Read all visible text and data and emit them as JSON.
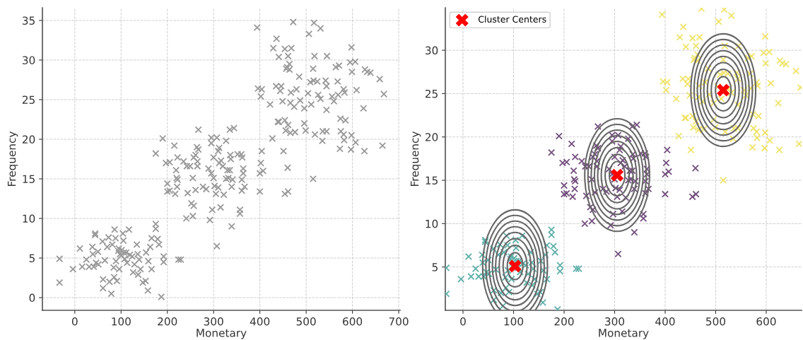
{
  "chart_data": [
    {
      "type": "scatter",
      "xlabel": "Monetary",
      "ylabel": "Frequency",
      "xlim": [
        -70,
        703
      ],
      "ylim": [
        -1.6,
        36.6
      ],
      "xticks": [
        0,
        100,
        200,
        300,
        400,
        500,
        600,
        700
      ],
      "yticks": [
        0,
        5,
        10,
        15,
        20,
        25,
        30,
        35
      ],
      "grid": true,
      "marker": "cross",
      "legend": false,
      "series": [
        {
          "color": "#999999",
          "x": [
            -33,
            -33,
            -4,
            11,
            16,
            25,
            31,
            38,
            39,
            41,
            44,
            44,
            46,
            50,
            51,
            60,
            61,
            61,
            65,
            70,
            73,
            75,
            79,
            81,
            84,
            85,
            86,
            88,
            89,
            91,
            94,
            96,
            98,
            101,
            104,
            105,
            106,
            111,
            117,
            119,
            124,
            126,
            129,
            134,
            136,
            137,
            139,
            142,
            147,
            153,
            154,
            158,
            159,
            163,
            166,
            166,
            175,
            175,
            179,
            182,
            187,
            192,
            192,
            224,
            229,
            95,
            100,
            108,
            113,
            241,
            255,
            175,
            190,
            215,
            197,
            205,
            222,
            235,
            219,
            242,
            249,
            220,
            222,
            200,
            200,
            205,
            217,
            221,
            244,
            255,
            252,
            257,
            261,
            261,
            264,
            267,
            267,
            265,
            265,
            257,
            277,
            284,
            289,
            295,
            295,
            307,
            300,
            295,
            300,
            302,
            305,
            310,
            312,
            312,
            316,
            320,
            310,
            327,
            322,
            327,
            330,
            335,
            332,
            341,
            339,
            336,
            337,
            335,
            344,
            352,
            360,
            362,
            364,
            364,
            361,
            361,
            367,
            297,
            315,
            357,
            357,
            292,
            339,
            400,
            400,
            407,
            402,
            404,
            454,
            461,
            460,
            307,
            394,
            472,
            517,
            531,
            506,
            436,
            429,
            454,
            468,
            441,
            461,
            518,
            545,
            598,
            595,
            606,
            599,
            627,
            639,
            659,
            668,
            624,
            459,
            464,
            457,
            464,
            485,
            515,
            564,
            571,
            509,
            516,
            524,
            542,
            544,
            568,
            396,
            404,
            402,
            435,
            446,
            444,
            479,
            467,
            504,
            526,
            531,
            556,
            569,
            581,
            583,
            609,
            560,
            422,
            449,
            466,
            474,
            487,
            496,
            511,
            544,
            441,
            454,
            461,
            456,
            466,
            476,
            496,
            499,
            519,
            536,
            544,
            574,
            585,
            575,
            581,
            598,
            427,
            451,
            439,
            665,
            632,
            515,
            573,
            597,
            626,
            607,
            582,
            535
          ],
          "values": [
            4.9,
            1.9,
            3.6,
            6.2,
            3.9,
            4.8,
            3.9,
            6.4,
            5.5,
            3.9,
            8.1,
            7.9,
            4.4,
            5.8,
            4.2,
            7.1,
            2.3,
            1.2,
            4.7,
            6.4,
            7.6,
            2.0,
            0.5,
            6.7,
            3.8,
            2.6,
            8.6,
            7.5,
            4.6,
            2.1,
            5.9,
            3.6,
            5.5,
            6.0,
            8.1,
            7.2,
            5.7,
            5.7,
            8.6,
            5.4,
            5.2,
            3.2,
            4.2,
            6.7,
            5.5,
            2.9,
            4.8,
            3.6,
            1.9,
            2.1,
            5.7,
            0.9,
            4.6,
            6.4,
            3.6,
            7.5,
            9.3,
            8.7,
            7.4,
            6.7,
            0.1,
            5.2,
            4.5,
            4.8,
            4.8,
            6.2,
            5.3,
            4.9,
            4.4,
            10.0,
            10.3,
            18.2,
            20.1,
            19.2,
            17.0,
            17.1,
            17.7,
            17.2,
            16.1,
            16.6,
            16.6,
            15.1,
            14.9,
            14.4,
            13.4,
            13.5,
            13.1,
            14.0,
            13.2,
            15.1,
            11.9,
            11.6,
            13.6,
            18.0,
            19.0,
            18.7,
            21.2,
            17.2,
            16.6,
            17.7,
            14.0,
            13.7,
            16.3,
            20.2,
            19.5,
            20.2,
            17.7,
            15.7,
            15.1,
            14.1,
            13.1,
            18.5,
            18.9,
            17.0,
            17.3,
            16.6,
            13.9,
            19.8,
            13.0,
            15.0,
            16.1,
            16.1,
            15.1,
            14.9,
            14.0,
            18.0,
            17.5,
            21.2,
            21.4,
            18.1,
            18.1,
            17.7,
            16.3,
            15.7,
            14.9,
            13.5,
            14.0,
            11.1,
            11.4,
            11.1,
            10.6,
            9.8,
            9.0,
            13.4,
            15.7,
            16.0,
            17.0,
            18.5,
            13.1,
            13.4,
            16.4,
            6.5,
            34.1,
            34.8,
            34.7,
            34.0,
            33.3,
            32.7,
            31.5,
            31.4,
            31.5,
            30.4,
            30.5,
            30.5,
            30.5,
            31.6,
            29.7,
            29.8,
            28.5,
            28.8,
            28.4,
            27.6,
            25.7,
            23.9,
            29.1,
            29.5,
            28.9,
            28.8,
            27.9,
            28.9,
            29.1,
            29.3,
            27.2,
            27.4,
            27.3,
            27.4,
            26.7,
            27.3,
            26.4,
            26.3,
            25.4,
            26.7,
            26.7,
            26.1,
            26.3,
            25.9,
            25.8,
            25.6,
            25.1,
            25.4,
            25.6,
            26.3,
            25.9,
            26.2,
            24.8,
            24.4,
            24.8,
            24.6,
            24.1,
            24.9,
            23.9,
            24.4,
            23.7,
            22.2,
            22.4,
            21.8,
            21.1,
            20.8,
            20.9,
            22.0,
            21.1,
            20.6,
            21.0,
            21.0,
            22.6,
            22.4,
            21.0,
            20.6,
            20.5,
            20.1,
            18.5,
            22.2,
            19.2,
            28.5,
            15.0,
            18.8,
            18.7,
            18.5,
            19.6,
            19.9,
            19.8
          ]
        }
      ]
    },
    {
      "type": "scatter",
      "xlabel": "Monetary",
      "ylabel": "Frequency",
      "xlim": [
        -35,
        670
      ],
      "ylim": [
        0,
        34.9
      ],
      "xticks": [
        0,
        100,
        200,
        300,
        400,
        500,
        600
      ],
      "yticks": [
        5,
        10,
        15,
        20,
        25,
        30
      ],
      "grid": true,
      "legend": "top left",
      "series": [
        {
          "color": "#5fb0aa",
          "marker": "cross",
          "x": [
            -33,
            -33,
            -4,
            11,
            16,
            25,
            31,
            38,
            39,
            41,
            44,
            44,
            46,
            50,
            51,
            60,
            61,
            61,
            65,
            70,
            73,
            75,
            79,
            81,
            84,
            85,
            86,
            88,
            89,
            91,
            94,
            96,
            98,
            101,
            104,
            105,
            106,
            111,
            117,
            119,
            124,
            126,
            129,
            134,
            136,
            137,
            139,
            142,
            147,
            153,
            154,
            158,
            159,
            163,
            166,
            166,
            175,
            175,
            179,
            182,
            187,
            192,
            192,
            224,
            229,
            95,
            100,
            108,
            113
          ],
          "values": [
            4.9,
            1.9,
            3.6,
            6.2,
            3.9,
            4.8,
            3.9,
            6.4,
            5.5,
            3.9,
            8.1,
            7.9,
            4.4,
            5.8,
            4.2,
            7.1,
            2.3,
            1.2,
            4.7,
            6.4,
            7.6,
            2.0,
            0.5,
            6.7,
            3.8,
            2.6,
            8.6,
            7.5,
            4.6,
            2.1,
            5.9,
            3.6,
            5.5,
            6.0,
            8.1,
            7.2,
            5.7,
            5.7,
            8.6,
            5.4,
            5.2,
            3.2,
            4.2,
            6.7,
            5.5,
            2.9,
            4.8,
            3.6,
            1.9,
            2.1,
            5.7,
            0.9,
            4.6,
            6.4,
            3.6,
            7.5,
            9.3,
            8.7,
            7.4,
            6.7,
            0.1,
            5.2,
            4.5,
            4.8,
            4.8,
            6.2,
            5.3,
            4.9,
            4.4
          ]
        },
        {
          "color": "#74507f",
          "marker": "cross",
          "x": [
            241,
            255,
            175,
            190,
            215,
            197,
            205,
            222,
            235,
            219,
            242,
            249,
            220,
            222,
            200,
            200,
            205,
            217,
            221,
            244,
            255,
            252,
            257,
            261,
            261,
            264,
            267,
            267,
            265,
            265,
            257,
            277,
            284,
            289,
            295,
            295,
            307,
            300,
            295,
            300,
            302,
            305,
            310,
            312,
            312,
            316,
            320,
            310,
            327,
            322,
            327,
            330,
            335,
            332,
            341,
            339,
            336,
            337,
            335,
            344,
            352,
            360,
            362,
            364,
            364,
            361,
            361,
            367,
            297,
            315,
            357,
            357,
            292,
            339,
            400,
            400,
            407,
            402,
            404,
            454,
            461,
            460,
            307
          ],
          "values": [
            10.0,
            10.3,
            18.2,
            20.1,
            19.2,
            17.0,
            17.1,
            17.7,
            17.2,
            16.1,
            16.6,
            16.6,
            15.1,
            14.9,
            14.4,
            13.4,
            13.5,
            13.1,
            14.0,
            13.2,
            15.1,
            11.9,
            11.6,
            13.6,
            18.0,
            19.0,
            18.7,
            21.2,
            17.2,
            16.6,
            17.7,
            14.0,
            13.7,
            16.3,
            20.2,
            19.5,
            20.2,
            17.7,
            15.7,
            15.1,
            14.1,
            13.1,
            18.5,
            18.9,
            17.0,
            17.3,
            16.6,
            13.9,
            19.8,
            13.0,
            15.0,
            16.1,
            16.1,
            15.1,
            14.9,
            14.0,
            18.0,
            17.5,
            21.2,
            21.4,
            18.1,
            18.1,
            17.7,
            16.3,
            15.7,
            14.9,
            13.5,
            14.0,
            11.1,
            11.4,
            11.1,
            10.6,
            9.8,
            9.0,
            13.4,
            15.7,
            16.0,
            17.0,
            18.5,
            13.1,
            13.4,
            16.4,
            6.5
          ]
        },
        {
          "color": "#f0e36a",
          "marker": "cross",
          "x": [
            394,
            472,
            517,
            531,
            506,
            436,
            429,
            454,
            468,
            441,
            461,
            518,
            545,
            598,
            595,
            606,
            599,
            627,
            639,
            659,
            668,
            624,
            459,
            464,
            457,
            464,
            485,
            515,
            564,
            571,
            509,
            516,
            524,
            542,
            544,
            568,
            396,
            404,
            402,
            435,
            446,
            444,
            479,
            467,
            504,
            526,
            531,
            556,
            569,
            581,
            583,
            609,
            560,
            422,
            449,
            466,
            474,
            487,
            496,
            511,
            544,
            441,
            454,
            461,
            456,
            466,
            476,
            496,
            499,
            519,
            536,
            544,
            574,
            585,
            575,
            581,
            598,
            427,
            451,
            439,
            665,
            632,
            515,
            573,
            597,
            626,
            607,
            582,
            535
          ],
          "values": [
            34.1,
            34.8,
            34.7,
            34.0,
            33.3,
            32.7,
            31.5,
            31.4,
            31.5,
            30.4,
            30.5,
            30.5,
            30.5,
            31.6,
            29.7,
            29.8,
            28.5,
            28.8,
            28.4,
            27.6,
            25.7,
            23.9,
            29.1,
            29.5,
            28.9,
            28.8,
            27.9,
            28.9,
            29.1,
            29.3,
            27.2,
            27.4,
            27.3,
            27.4,
            26.7,
            27.3,
            26.4,
            26.3,
            25.4,
            26.7,
            26.7,
            26.1,
            26.3,
            25.9,
            25.8,
            25.6,
            25.1,
            25.4,
            25.6,
            26.3,
            25.9,
            26.2,
            24.8,
            24.4,
            24.8,
            24.6,
            24.1,
            24.9,
            23.9,
            24.4,
            23.7,
            22.2,
            22.4,
            21.8,
            21.1,
            20.8,
            20.9,
            22.0,
            21.1,
            20.6,
            21.0,
            21.0,
            22.6,
            22.4,
            21.0,
            20.6,
            20.5,
            20.1,
            18.5,
            22.2,
            19.2,
            28.5,
            15.0,
            18.8,
            18.7,
            18.5,
            19.6,
            19.9,
            19.8
          ]
        },
        {
          "name": "Cluster Centers",
          "color": "#ff0000",
          "type": "scatter",
          "marker": "cross",
          "x": [
            103,
            305,
            515
          ],
          "values": [
            5.1,
            15.6,
            25.4
          ]
        }
      ]
    }
  ]
}
